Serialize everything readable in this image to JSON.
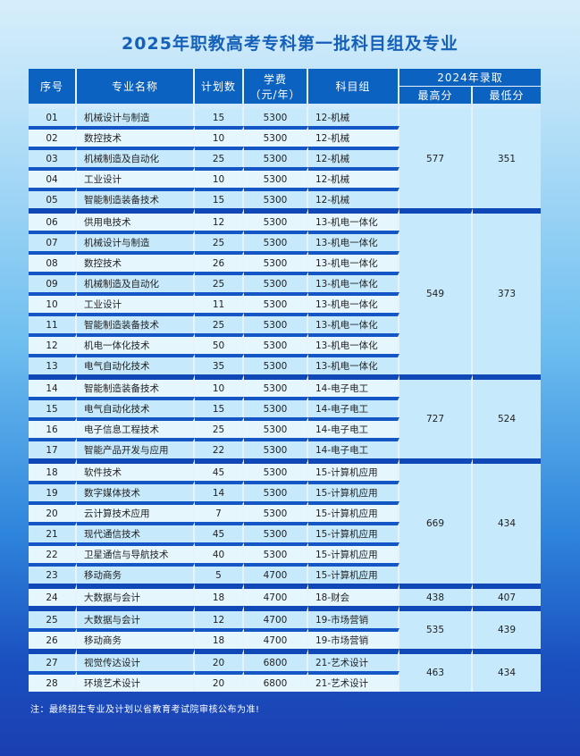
{
  "title": "2025年职教高考专科第一批科目组及专业",
  "headers": {
    "no": "序号",
    "name": "专业名称",
    "plan": "计划数",
    "fee_line1": "学费",
    "fee_line2": "（元/年）",
    "group": "科目组",
    "admit": "2024年录取",
    "max": "最高分",
    "min": "最低分"
  },
  "groups": [
    {
      "max": "577",
      "min": "351",
      "rows": [
        [
          "01",
          "机械设计与制造",
          "15",
          "5300",
          "12-机械"
        ],
        [
          "02",
          "数控技术",
          "10",
          "5300",
          "12-机械"
        ],
        [
          "03",
          "机械制造及自动化",
          "25",
          "5300",
          "12-机械"
        ],
        [
          "04",
          "工业设计",
          "10",
          "5300",
          "12-机械"
        ],
        [
          "05",
          "智能制造装备技术",
          "15",
          "5300",
          "12-机械"
        ]
      ]
    },
    {
      "max": "549",
      "min": "373",
      "rows": [
        [
          "06",
          "供用电技术",
          "12",
          "5300",
          "13-机电一体化"
        ],
        [
          "07",
          "机械设计与制造",
          "25",
          "5300",
          "13-机电一体化"
        ],
        [
          "08",
          "数控技术",
          "26",
          "5300",
          "13-机电一体化"
        ],
        [
          "09",
          "机械制造及自动化",
          "25",
          "5300",
          "13-机电一体化"
        ],
        [
          "10",
          "工业设计",
          "11",
          "5300",
          "13-机电一体化"
        ],
        [
          "11",
          "智能制造装备技术",
          "25",
          "5300",
          "13-机电一体化"
        ],
        [
          "12",
          "机电一体化技术",
          "50",
          "5300",
          "13-机电一体化"
        ],
        [
          "13",
          "电气自动化技术",
          "35",
          "5300",
          "13-机电一体化"
        ]
      ]
    },
    {
      "max": "727",
      "min": "524",
      "rows": [
        [
          "14",
          "智能制造装备技术",
          "10",
          "5300",
          "14-电子电工"
        ],
        [
          "15",
          "电气自动化技术",
          "15",
          "5300",
          "14-电子电工"
        ],
        [
          "16",
          "电子信息工程技术",
          "25",
          "5300",
          "14-电子电工"
        ],
        [
          "17",
          "智能产品开发与应用",
          "22",
          "5300",
          "14-电子电工"
        ]
      ]
    },
    {
      "max": "669",
      "min": "434",
      "rows": [
        [
          "18",
          "软件技术",
          "45",
          "5300",
          "15-计算机应用"
        ],
        [
          "19",
          "数字媒体技术",
          "14",
          "5300",
          "15-计算机应用"
        ],
        [
          "20",
          "云计算技术应用",
          "7",
          "5300",
          "15-计算机应用"
        ],
        [
          "21",
          "现代通信技术",
          "45",
          "5300",
          "15-计算机应用"
        ],
        [
          "22",
          "卫星通信与导航技术",
          "40",
          "5300",
          "15-计算机应用"
        ],
        [
          "23",
          "移动商务",
          "5",
          "4700",
          "15-计算机应用"
        ]
      ]
    },
    {
      "max": "438",
      "min": "407",
      "rows": [
        [
          "24",
          "大数据与会计",
          "18",
          "4700",
          "18-财会"
        ]
      ]
    },
    {
      "max": "535",
      "min": "439",
      "rows": [
        [
          "25",
          "大数据与会计",
          "12",
          "4700",
          "19-市场营销"
        ],
        [
          "26",
          "移动商务",
          "18",
          "4700",
          "19-市场营销"
        ]
      ]
    },
    {
      "max": "463",
      "min": "434",
      "rows": [
        [
          "27",
          "视觉传达设计",
          "20",
          "6800",
          "21-艺术设计"
        ],
        [
          "28",
          "环境艺术设计",
          "20",
          "6800",
          "21-艺术设计"
        ]
      ]
    }
  ],
  "note": "注：最终招生专业及计划以省教育考试院审核公布为准!"
}
